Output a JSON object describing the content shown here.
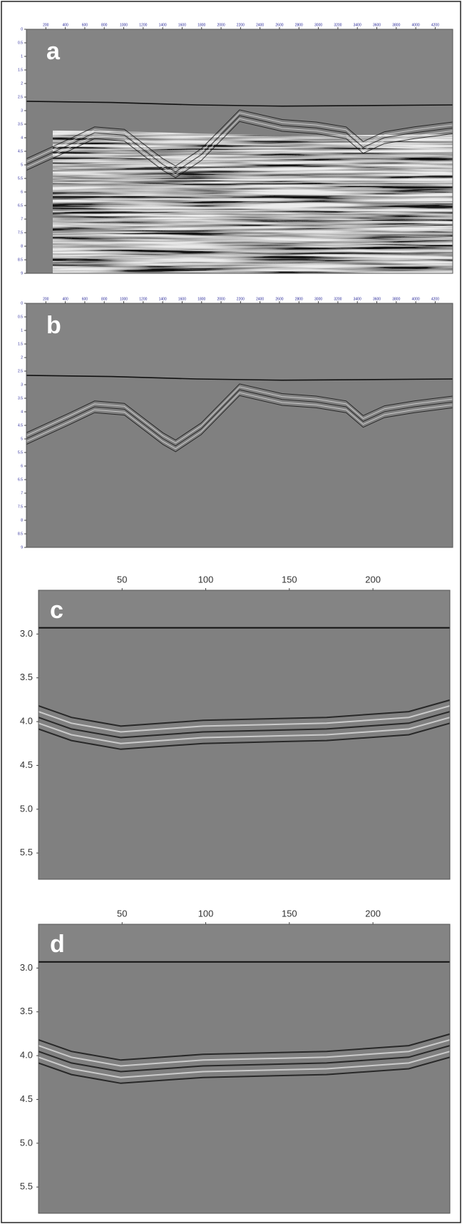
{
  "panels": [
    {
      "label": "a",
      "xlim": [
        0,
        4380
      ],
      "xticks": [
        200,
        400,
        600,
        800,
        1000,
        1200,
        1400,
        1600,
        1800,
        2000,
        2200,
        2400,
        2600,
        2800,
        3000,
        3200,
        3400,
        3600,
        3800,
        4000,
        4200
      ],
      "ylim": [
        0,
        9
      ],
      "yticks": [
        0,
        0.5,
        1,
        1.5,
        2,
        2.5,
        3,
        3.5,
        4,
        4.5,
        5,
        5.5,
        6,
        6.5,
        7,
        7.5,
        8,
        8.5,
        9
      ]
    },
    {
      "label": "b",
      "xlim": [
        0,
        4380
      ],
      "xticks": [
        200,
        400,
        600,
        800,
        1000,
        1200,
        1400,
        1600,
        1800,
        2000,
        2200,
        2400,
        2600,
        2800,
        3000,
        3200,
        3400,
        3600,
        3800,
        4000,
        4200
      ],
      "ylim": [
        0,
        9
      ],
      "yticks": [
        0,
        0.5,
        1,
        1.5,
        2,
        2.5,
        3,
        3.5,
        4,
        4.5,
        5,
        5.5,
        6,
        6.5,
        7,
        7.5,
        8,
        8.5,
        9
      ]
    },
    {
      "label": "c",
      "xlim": [
        0,
        246
      ],
      "xticks": [
        50,
        100,
        150,
        200
      ],
      "ylim": [
        2.5,
        5.8
      ],
      "yticks": [
        {
          "value": 3,
          "label": "3.0"
        },
        3.5,
        {
          "value": 4,
          "label": "4.0"
        },
        4.5,
        {
          "value": 5,
          "label": "5.0"
        },
        5.5
      ]
    },
    {
      "label": "d",
      "xlim": [
        0,
        246
      ],
      "xticks": [
        50,
        100,
        150,
        200
      ],
      "ylim": [
        2.5,
        5.8
      ],
      "yticks": [
        {
          "value": 3,
          "label": "3.0"
        },
        3.5,
        {
          "value": 4,
          "label": "4.0"
        },
        4.5,
        {
          "value": 5,
          "label": "5.0"
        },
        5.5
      ]
    }
  ]
}
